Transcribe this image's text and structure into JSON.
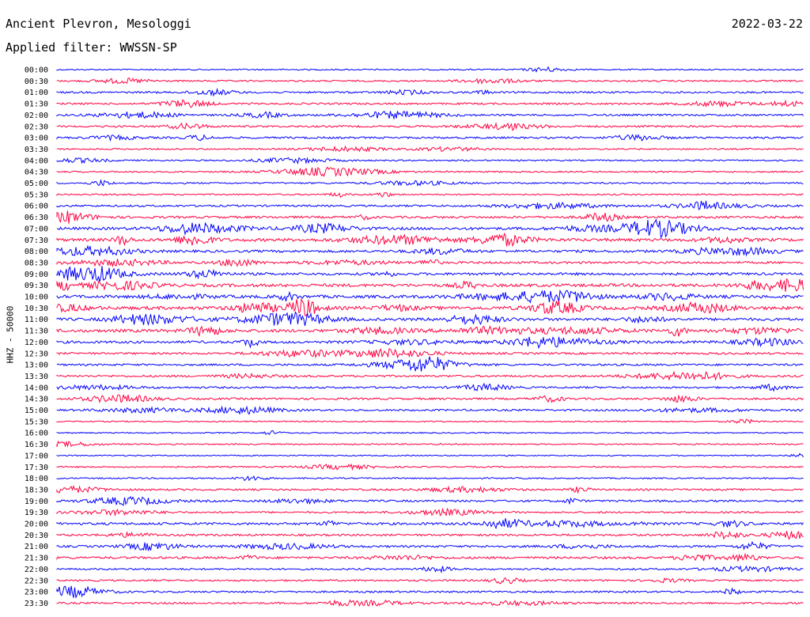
{
  "header": {
    "station": "Ancient Plevron, Mesologgi",
    "date": "2022-03-22",
    "filter": "Applied filter: WWSSN-SP"
  },
  "chart_data": {
    "type": "line",
    "title": "Ancient Plevron, Mesologgi",
    "ylabel": "HHZ - 50000",
    "colors": [
      "#0000ff",
      "#ff0040"
    ],
    "rows": [
      {
        "label": "00:00",
        "color": "#0000ff",
        "activity": 0.15
      },
      {
        "label": "00:30",
        "color": "#ff0040",
        "activity": 0.25
      },
      {
        "label": "01:00",
        "color": "#0000ff",
        "activity": 0.35
      },
      {
        "label": "01:30",
        "color": "#ff0040",
        "activity": 0.35
      },
      {
        "label": "02:00",
        "color": "#0000ff",
        "activity": 0.35
      },
      {
        "label": "02:30",
        "color": "#ff0040",
        "activity": 0.35
      },
      {
        "label": "03:00",
        "color": "#0000ff",
        "activity": 0.4
      },
      {
        "label": "03:30",
        "color": "#ff0040",
        "activity": 0.2
      },
      {
        "label": "04:00",
        "color": "#0000ff",
        "activity": 0.2
      },
      {
        "label": "04:30",
        "color": "#ff0040",
        "activity": 0.2
      },
      {
        "label": "05:00",
        "color": "#0000ff",
        "activity": 0.25
      },
      {
        "label": "05:30",
        "color": "#ff0040",
        "activity": 0.2
      },
      {
        "label": "06:00",
        "color": "#0000ff",
        "activity": 0.4
      },
      {
        "label": "06:30",
        "color": "#ff0040",
        "activity": 0.5
      },
      {
        "label": "07:00",
        "color": "#0000ff",
        "activity": 0.7
      },
      {
        "label": "07:30",
        "color": "#ff0040",
        "activity": 0.8
      },
      {
        "label": "08:00",
        "color": "#0000ff",
        "activity": 0.6
      },
      {
        "label": "08:30",
        "color": "#ff0040",
        "activity": 0.5
      },
      {
        "label": "09:00",
        "color": "#0000ff",
        "activity": 0.6
      },
      {
        "label": "09:30",
        "color": "#ff0040",
        "activity": 0.8
      },
      {
        "label": "10:00",
        "color": "#0000ff",
        "activity": 0.8
      },
      {
        "label": "10:30",
        "color": "#ff0040",
        "activity": 0.9
      },
      {
        "label": "11:00",
        "color": "#0000ff",
        "activity": 0.7
      },
      {
        "label": "11:30",
        "color": "#ff0040",
        "activity": 0.8
      },
      {
        "label": "12:00",
        "color": "#0000ff",
        "activity": 0.6
      },
      {
        "label": "12:30",
        "color": "#ff0040",
        "activity": 0.4
      },
      {
        "label": "13:00",
        "color": "#0000ff",
        "activity": 0.4
      },
      {
        "label": "13:30",
        "color": "#ff0040",
        "activity": 0.4
      },
      {
        "label": "14:00",
        "color": "#0000ff",
        "activity": 0.35
      },
      {
        "label": "14:30",
        "color": "#ff0040",
        "activity": 0.4
      },
      {
        "label": "15:00",
        "color": "#0000ff",
        "activity": 0.35
      },
      {
        "label": "15:30",
        "color": "#ff0040",
        "activity": 0.1
      },
      {
        "label": "16:00",
        "color": "#0000ff",
        "activity": 0.1
      },
      {
        "label": "16:30",
        "color": "#ff0040",
        "activity": 0.15
      },
      {
        "label": "17:00",
        "color": "#0000ff",
        "activity": 0.1
      },
      {
        "label": "17:30",
        "color": "#ff0040",
        "activity": 0.15
      },
      {
        "label": "18:00",
        "color": "#0000ff",
        "activity": 0.15
      },
      {
        "label": "18:30",
        "color": "#ff0040",
        "activity": 0.35
      },
      {
        "label": "19:00",
        "color": "#0000ff",
        "activity": 0.4
      },
      {
        "label": "19:30",
        "color": "#ff0040",
        "activity": 0.3
      },
      {
        "label": "20:00",
        "color": "#0000ff",
        "activity": 0.6
      },
      {
        "label": "20:30",
        "color": "#ff0040",
        "activity": 0.4
      },
      {
        "label": "21:00",
        "color": "#0000ff",
        "activity": 0.45
      },
      {
        "label": "21:30",
        "color": "#ff0040",
        "activity": 0.5
      },
      {
        "label": "22:00",
        "color": "#0000ff",
        "activity": 0.3
      },
      {
        "label": "22:30",
        "color": "#ff0040",
        "activity": 0.3
      },
      {
        "label": "23:00",
        "color": "#0000ff",
        "activity": 0.35
      },
      {
        "label": "23:30",
        "color": "#ff0040",
        "activity": 0.35
      }
    ]
  }
}
